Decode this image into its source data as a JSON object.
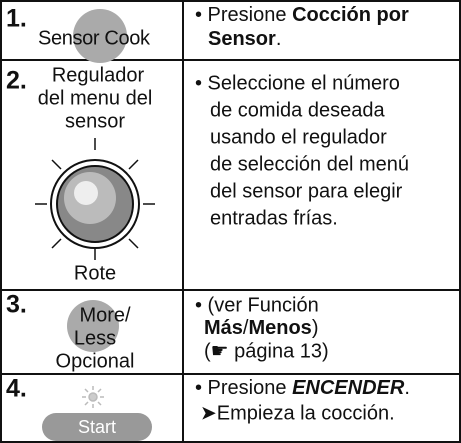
{
  "steps": [
    {
      "number": "1.",
      "left": [
        "Sensor Cook"
      ],
      "right": [
        [
          "• Presione ",
          "Cocción por"
        ],
        [
          "Sensor",
          "."
        ]
      ]
    },
    {
      "number": "2.",
      "left": [
        "Regulador",
        "del menu del",
        "sensor",
        "Rote"
      ],
      "right": [
        [
          "• Seleccione el número"
        ],
        [
          "de comida deseada"
        ],
        [
          "usando el regulador"
        ],
        [
          "de selección del menú"
        ],
        [
          "del sensor para elegir"
        ],
        [
          "entradas frías."
        ]
      ]
    },
    {
      "number": "3.",
      "left": [
        "More/",
        "Less",
        "Opcional"
      ],
      "right": [
        [
          "• (ver Función"
        ],
        [
          "Más",
          "/",
          "Menos",
          ")"
        ],
        [
          "(☛ página 13)"
        ]
      ]
    },
    {
      "number": "4.",
      "left": [
        "Start"
      ],
      "right": [
        [
          "• Presione ",
          "ENCENDER",
          "."
        ],
        [
          "➤Empieza la cocción."
        ]
      ]
    }
  ]
}
